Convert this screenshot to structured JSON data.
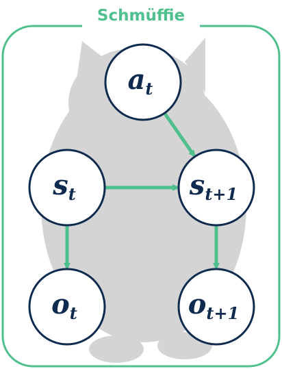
{
  "title": "Schmüffie",
  "colors": {
    "accent": "#4fc08d",
    "node_stroke": "#0f2a4f",
    "node_fill": "#ffffff",
    "label": "#0f2a4f",
    "cat_silhouette": "#d4d4d4"
  },
  "background_image": {
    "icon": "cat-silhouette"
  },
  "nodes": [
    {
      "id": "a_t",
      "base": "a",
      "sub": "t"
    },
    {
      "id": "s_t",
      "base": "s",
      "sub": "t"
    },
    {
      "id": "s_t1",
      "base": "s",
      "sub": "t+1"
    },
    {
      "id": "o_t",
      "base": "o",
      "sub": "t"
    },
    {
      "id": "o_t1",
      "base": "o",
      "sub": "t+1"
    }
  ],
  "edges": [
    {
      "from": "a_t",
      "to": "s_t1"
    },
    {
      "from": "s_t",
      "to": "s_t1"
    },
    {
      "from": "s_t",
      "to": "o_t"
    },
    {
      "from": "s_t1",
      "to": "o_t1"
    }
  ]
}
